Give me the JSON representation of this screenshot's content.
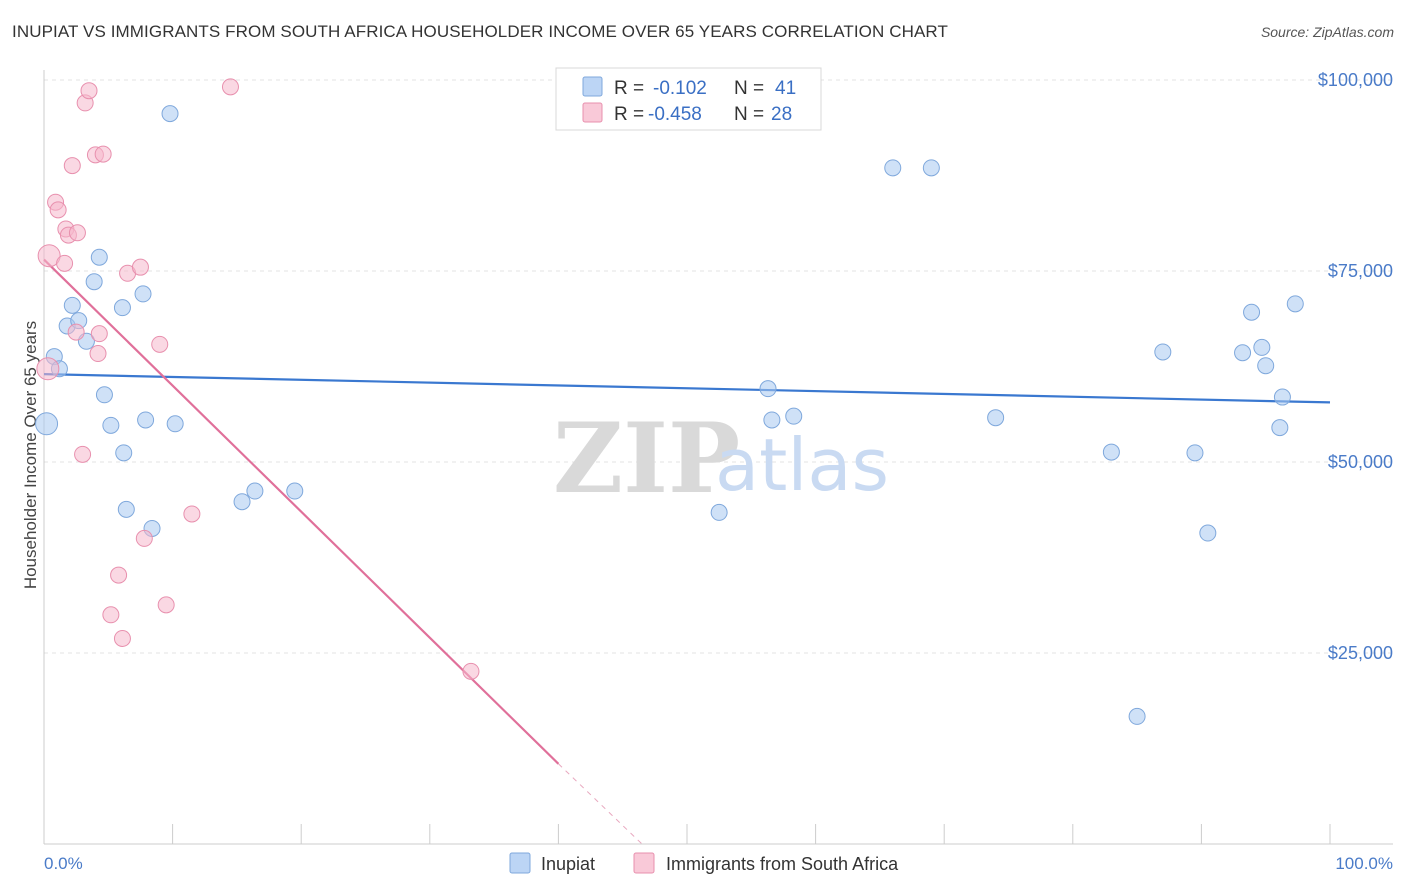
{
  "chart_data": {
    "type": "scatter",
    "title": "INUPIAT VS IMMIGRANTS FROM SOUTH AFRICA HOUSEHOLDER INCOME OVER 65 YEARS CORRELATION CHART",
    "source": "Source: ZipAtlas.com",
    "xlabel": "",
    "ylabel": "Householder Income Over 65 years",
    "xlim": [
      0,
      100
    ],
    "ylim": [
      0,
      105000
    ],
    "x_tick_labels": [
      "0.0%",
      "100.0%"
    ],
    "y_ticks": [
      {
        "value": 25000,
        "label": "$25,000"
      },
      {
        "value": 50000,
        "label": "$50,000"
      },
      {
        "value": 75000,
        "label": "$75,000"
      },
      {
        "value": 100000,
        "label": "$100,000"
      }
    ],
    "grid": true,
    "watermark": {
      "zip": "ZIP",
      "atlas": "atlas"
    },
    "legend": {
      "r_label": "R =",
      "n_label": "N =",
      "items": [
        {
          "name": "Inupiat",
          "r": "-0.102",
          "n": "41",
          "color": "#a8c8f0"
        },
        {
          "name": "Immigrants from South Africa",
          "r": "-0.458",
          "n": "28",
          "color": "#f5b8cc"
        }
      ]
    },
    "series": [
      {
        "name": "Inupiat",
        "color": "#a8c8f0",
        "stroke": "#7fa8dc",
        "trend_color": "#3a78d0",
        "trend": {
          "x": [
            0,
            100
          ],
          "y": [
            61500,
            57800
          ]
        },
        "points": [
          [
            0.2,
            55000
          ],
          [
            0.8,
            63800
          ],
          [
            1.2,
            62200
          ],
          [
            1.8,
            67800
          ],
          [
            2.2,
            70500
          ],
          [
            2.7,
            68500
          ],
          [
            3.3,
            65800
          ],
          [
            3.9,
            73600
          ],
          [
            4.3,
            76800
          ],
          [
            4.7,
            58800
          ],
          [
            5.2,
            54800
          ],
          [
            6.2,
            51200
          ],
          [
            6.4,
            43800
          ],
          [
            6.1,
            70200
          ],
          [
            7.7,
            72000
          ],
          [
            7.9,
            55500
          ],
          [
            8.4,
            41300
          ],
          [
            9.8,
            95600
          ],
          [
            10.2,
            55000
          ],
          [
            15.4,
            44800
          ],
          [
            16.4,
            46200
          ],
          [
            19.5,
            46200
          ],
          [
            52.5,
            43400
          ],
          [
            56.3,
            59600
          ],
          [
            56.6,
            55500
          ],
          [
            58.3,
            56000
          ],
          [
            66.0,
            88500
          ],
          [
            69.0,
            88500
          ],
          [
            74.0,
            55800
          ],
          [
            83.0,
            51300
          ],
          [
            85.0,
            16700
          ],
          [
            87.0,
            64400
          ],
          [
            89.5,
            51200
          ],
          [
            90.5,
            40700
          ],
          [
            93.2,
            64300
          ],
          [
            93.9,
            69600
          ],
          [
            94.7,
            65000
          ],
          [
            95.0,
            62600
          ],
          [
            96.1,
            54500
          ],
          [
            96.3,
            58500
          ],
          [
            97.3,
            70700
          ]
        ]
      },
      {
        "name": "Immigrants from South Africa",
        "color": "#f5b8cc",
        "stroke": "#e890ae",
        "trend_color": "#e0709a",
        "trend": {
          "x": [
            0,
            40
          ],
          "y": [
            76500,
            10500
          ]
        },
        "trend_dashed": {
          "x": [
            40,
            46.5
          ],
          "y": [
            10500,
            0
          ]
        },
        "points": [
          [
            0.3,
            62200
          ],
          [
            0.4,
            77000
          ],
          [
            0.9,
            84000
          ],
          [
            1.1,
            83000
          ],
          [
            1.6,
            76000
          ],
          [
            1.7,
            80500
          ],
          [
            1.9,
            79700
          ],
          [
            2.2,
            88800
          ],
          [
            2.5,
            67000
          ],
          [
            2.6,
            80000
          ],
          [
            3.0,
            51000
          ],
          [
            3.2,
            97000
          ],
          [
            3.5,
            98600
          ],
          [
            4.0,
            90200
          ],
          [
            4.6,
            90300
          ],
          [
            4.2,
            64200
          ],
          [
            4.3,
            66800
          ],
          [
            5.2,
            30000
          ],
          [
            5.8,
            35200
          ],
          [
            6.1,
            26900
          ],
          [
            6.5,
            74700
          ],
          [
            7.5,
            75500
          ],
          [
            7.8,
            40000
          ],
          [
            9.0,
            65400
          ],
          [
            9.5,
            31300
          ],
          [
            11.5,
            43200
          ],
          [
            14.5,
            99100
          ],
          [
            33.2,
            22600
          ]
        ]
      }
    ]
  }
}
